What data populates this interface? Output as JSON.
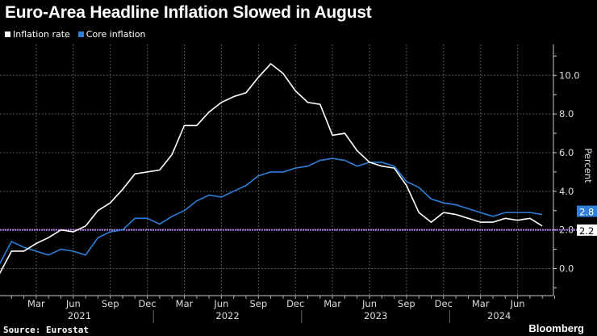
{
  "title": "Euro-Area Headline Inflation Slowed in August",
  "source": "Source: Eurostat",
  "brand": "Bloomberg",
  "chart_data": {
    "type": "line",
    "title": "Euro-Area Headline Inflation Slowed in August",
    "ylabel": "Percent",
    "ylim": [
      -1.4,
      11.6
    ],
    "yticks": [
      "0.0",
      "2.0",
      "4.0",
      "6.0",
      "8.0",
      "10.0"
    ],
    "ytick_values": [
      0,
      2,
      4,
      6,
      8,
      10
    ],
    "x_start": "2020-12",
    "month_ticks": [
      {
        "label": "Mar",
        "date": "2021-03"
      },
      {
        "label": "Jun",
        "date": "2021-06"
      },
      {
        "label": "Sep",
        "date": "2021-09"
      },
      {
        "label": "Dec",
        "date": "2021-12"
      },
      {
        "label": "Mar",
        "date": "2022-03"
      },
      {
        "label": "Jun",
        "date": "2022-06"
      },
      {
        "label": "Sep",
        "date": "2022-09"
      },
      {
        "label": "Dec",
        "date": "2022-12"
      },
      {
        "label": "Mar",
        "date": "2023-03"
      },
      {
        "label": "Jun",
        "date": "2023-06"
      },
      {
        "label": "Sep",
        "date": "2023-09"
      },
      {
        "label": "Dec",
        "date": "2023-12"
      },
      {
        "label": "Mar",
        "date": "2024-03"
      },
      {
        "label": "Jun",
        "date": "2024-06"
      }
    ],
    "year_labels": [
      "2021",
      "2022",
      "2023",
      "2024"
    ],
    "grid": true,
    "legend": "top-left",
    "reference_line": {
      "value": 2.0,
      "color": "#b07ff0"
    },
    "series": [
      {
        "name": "Inflation rate",
        "color": "#ffffff",
        "last_label": "2.2",
        "values": [
          -0.3,
          0.9,
          0.9,
          1.3,
          1.6,
          2.0,
          1.9,
          2.2,
          3.0,
          3.4,
          4.1,
          4.9,
          5.0,
          5.1,
          5.9,
          7.4,
          7.4,
          8.1,
          8.6,
          8.9,
          9.1,
          9.9,
          10.6,
          10.1,
          9.2,
          8.6,
          8.5,
          6.9,
          7.0,
          6.1,
          5.5,
          5.3,
          5.2,
          4.3,
          2.9,
          2.4,
          2.9,
          2.8,
          2.6,
          2.4,
          2.4,
          2.6,
          2.5,
          2.6,
          2.2
        ]
      },
      {
        "name": "Core inflation",
        "color": "#2d7fd9",
        "last_label": "2.8",
        "values": [
          0.2,
          1.4,
          1.1,
          0.9,
          0.7,
          1.0,
          0.9,
          0.7,
          1.6,
          1.9,
          2.0,
          2.6,
          2.6,
          2.3,
          2.7,
          3.0,
          3.5,
          3.8,
          3.7,
          4.0,
          4.3,
          4.8,
          5.0,
          5.0,
          5.2,
          5.3,
          5.6,
          5.7,
          5.6,
          5.3,
          5.5,
          5.5,
          5.3,
          4.5,
          4.2,
          3.6,
          3.4,
          3.3,
          3.1,
          2.9,
          2.7,
          2.9,
          2.9,
          2.9,
          2.8
        ]
      }
    ]
  }
}
